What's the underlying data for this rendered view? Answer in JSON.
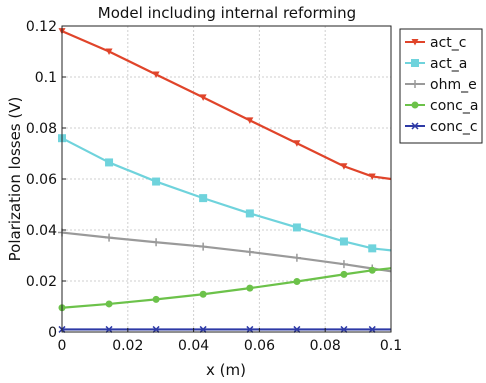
{
  "chart_data": {
    "type": "line",
    "title": "Model including internal reforming",
    "xlabel": "x (m)",
    "ylabel": "Polarization losses (V)",
    "xlim": [
      0,
      0.1
    ],
    "ylim": [
      0,
      0.12
    ],
    "grid": true,
    "legend_position": "outside-right-top",
    "xticks": [
      "0",
      "0.02",
      "0.04",
      "0.06",
      "0.08",
      "0.1"
    ],
    "yticks": [
      "0",
      "0.02",
      "0.04",
      "0.06",
      "0.08",
      "0.1",
      "0.12"
    ],
    "x": [
      0,
      0.0143,
      0.0286,
      0.0429,
      0.0571,
      0.0714,
      0.0857,
      0.0943,
      0.1
    ],
    "series": [
      {
        "name": "act_c",
        "color": "#e0442a",
        "marker": "triangle-down",
        "values": [
          0.118,
          0.11,
          0.101,
          0.092,
          0.083,
          0.074,
          0.065,
          0.061,
          0.06
        ]
      },
      {
        "name": "act_a",
        "color": "#6fd3dc",
        "marker": "square",
        "values": [
          0.076,
          0.0665,
          0.059,
          0.0525,
          0.0465,
          0.041,
          0.0355,
          0.0328,
          0.032
        ]
      },
      {
        "name": "ohm_e",
        "color": "#9a9a9a",
        "marker": "plus",
        "values": [
          0.039,
          0.037,
          0.0352,
          0.0335,
          0.0314,
          0.0291,
          0.0266,
          0.0249,
          0.0238
        ]
      },
      {
        "name": "conc_a",
        "color": "#6cc24a",
        "marker": "circle",
        "values": [
          0.0095,
          0.011,
          0.0128,
          0.0148,
          0.0172,
          0.0198,
          0.0226,
          0.0242,
          0.025
        ]
      },
      {
        "name": "conc_c",
        "color": "#2e3aa6",
        "marker": "x",
        "values": [
          0.001,
          0.001,
          0.001,
          0.001,
          0.001,
          0.001,
          0.001,
          0.001,
          0.001
        ]
      }
    ]
  }
}
